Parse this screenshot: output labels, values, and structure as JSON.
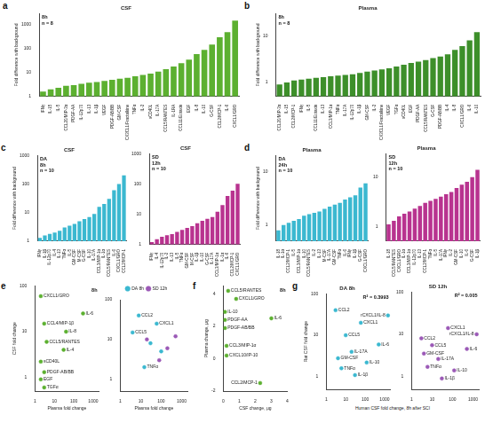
{
  "chart_data": [
    {
      "panel": "a",
      "type": "bar",
      "title": "CSF",
      "annotations": [
        "8h",
        "n = 8"
      ],
      "y_label": "Fold difference with background",
      "log": "y",
      "grid": false,
      "color": "#5cb030",
      "categories": [
        "IFNγ",
        "IL-15",
        "IL-5",
        "CCL20/MIP-3α",
        "PDGF-AA",
        "IL-12p70",
        "IL-13",
        "IL-1β",
        "VEGF",
        "PDGF-AB/BB",
        "GM-CSF",
        "CX3CL1/Fractalkine",
        "TNFα",
        "IL-2",
        "sCD40L",
        "IL-17A",
        "CCL5/RANTES",
        "IL-1RA",
        "CCL11/Eotaxin",
        "EGF",
        "IL-8",
        "IL-10",
        "G-CSF",
        "CCL2/MCP-1",
        "IL-6",
        "CXCL1/GRO"
      ],
      "values": [
        1.6,
        2,
        2.3,
        2.8,
        3,
        3.4,
        3.8,
        4,
        4.5,
        5,
        5.5,
        6,
        7,
        8,
        9,
        11,
        14,
        18,
        25,
        35,
        60,
        90,
        150,
        300,
        500,
        1500
      ],
      "ylim": [
        1,
        3000
      ],
      "yticks": [
        1,
        10,
        100,
        1000
      ]
    },
    {
      "panel": "b",
      "type": "bar",
      "title": "Plasma",
      "annotations": [
        "8h",
        "n = 8"
      ],
      "y_label": "Fold difference with background",
      "log": "y",
      "grid": false,
      "color": "#3d8f2a",
      "categories": [
        "CCL20/MIP-3α",
        "IL-15",
        "CCL2/MCP-1",
        "IFNγ",
        "IL-5",
        "CCL11/Eotaxin",
        "IL-13",
        "CCL3/MIP-1α",
        "TNFα",
        "IL-17A",
        "IL-12p70",
        "IL-1β",
        "GM-CSF",
        "IL-2",
        "CX3CL1/Fractalkine",
        "VEGF",
        "TGFα",
        "sCD40L",
        "EGF",
        "PDGF-AA",
        "CCL5/RANTES",
        "G-CSF",
        "PDGF-AB/BB",
        "IL-4",
        "IL-8",
        "CXCL1/GRO",
        "IL-6",
        "IL-10"
      ],
      "values": [
        0.9,
        1,
        1.1,
        1.15,
        1.2,
        1.25,
        1.3,
        1.35,
        1.4,
        1.45,
        1.5,
        1.6,
        1.7,
        1.8,
        1.9,
        2,
        2.2,
        2.4,
        2.6,
        2.8,
        3,
        3.3,
        3.6,
        4,
        5,
        6,
        8,
        12
      ],
      "ylim": [
        0.5,
        30
      ],
      "yticks": [
        1,
        10
      ]
    },
    {
      "panel": "c",
      "type": "bar",
      "title": "CSF",
      "annotations": [
        "DA",
        "8h",
        "n = 10"
      ],
      "y_label": "Fold difference with background",
      "log": "y",
      "grid": false,
      "color": "#3bb8d0",
      "categories": [
        "IFNγ",
        "IL-1β",
        "IL-12p70",
        "IL-4",
        "IL-13",
        "TNFα",
        "IL-5",
        "GM-CSF",
        "M-CSF",
        "G-CSF",
        "IL-10",
        "IL-17A",
        "CCL3/MIP-1α",
        "IL-1α",
        "CCL5/RANTES",
        "IL-6",
        "CXCL1/GRO",
        "CCL2/MCP-1"
      ],
      "values": [
        1.3,
        1.6,
        1.8,
        2,
        2.3,
        3,
        3.5,
        4,
        5,
        6,
        7,
        9,
        16,
        20,
        30,
        60,
        100,
        200
      ],
      "ylim": [
        1,
        1000
      ],
      "yticks": [
        1,
        10,
        100,
        1000
      ]
    },
    {
      "type": "bar",
      "title": "CSF",
      "annotations": [
        "SD",
        "12h",
        "n = 10"
      ],
      "log": "y",
      "grid": false,
      "color": "#b8338f",
      "categories": [
        "IFNγ",
        "IL-4",
        "IL-12p70",
        "IL-2",
        "IL-13",
        "IL-5",
        "TNFα",
        "GM-CSF",
        "M-CSF",
        "IL-1β",
        "IL-10",
        "G-CSF",
        "IL-17A",
        "CCL3/MIP-1α",
        "IL-1α",
        "IL-6",
        "CCL2/MCP-1",
        "CXCL1/GRO"
      ],
      "values": [
        1.2,
        1.5,
        1.8,
        2,
        2.2,
        2.6,
        3,
        3.5,
        4,
        5,
        6,
        7,
        8,
        12,
        20,
        40,
        60,
        100
      ],
      "ylim": [
        1,
        1000
      ],
      "yticks": [
        1,
        10,
        100,
        1000
      ]
    },
    {
      "panel": "d",
      "type": "bar",
      "title": "Plasma",
      "annotations": [
        "DA",
        "24h",
        "n = 10"
      ],
      "y_label": "Fold difference with background",
      "log": "y",
      "grid": false,
      "color": "#3bb8d0",
      "categories": [
        "IL-18",
        "IL-1α",
        "CCL2/MCP-1",
        "IL-5",
        "CCL3/MIP-1α",
        "IL-10",
        "CCL5/RANTES",
        "IL-2",
        "IL-13",
        "M-CSF",
        "IL-17A",
        "GM-CSF",
        "TNFα",
        "IL-6",
        "IFNγ",
        "IL-1β",
        "G-CSF",
        "CXCL1/GRO"
      ],
      "values": [
        0.8,
        1,
        1.1,
        1.2,
        1.3,
        1.5,
        1.6,
        1.7,
        1.8,
        2,
        2.2,
        2.4,
        2.6,
        3,
        3.3,
        3.6,
        5,
        6
      ],
      "ylim": [
        0.5,
        20
      ],
      "yticks": [
        1,
        10
      ]
    },
    {
      "type": "bar",
      "title": "Plasma",
      "annotations": [
        "SD",
        "12h",
        "n = 10"
      ],
      "log": "y",
      "grid": false,
      "color": "#b8338f",
      "categories": [
        "IL-18",
        "CCL5/RANTES",
        "CXCL1/GRO",
        "IL-1α",
        "CCL3/MIP-1α",
        "IL-12p70",
        "IL-13",
        "CCL2/MCP-1",
        "TNFα",
        "IL-5",
        "IL-17A",
        "IFNγ",
        "IL-2",
        "GM-CSF",
        "IL-10",
        "IL-6",
        "G-CSF",
        "IL-1β"
      ],
      "values": [
        1.1,
        1.3,
        1.6,
        1.8,
        2,
        2.3,
        2.6,
        3,
        3.3,
        3.6,
        4,
        4.5,
        5,
        6,
        7,
        8,
        10,
        14
      ],
      "ylim": [
        0.5,
        30
      ],
      "yticks": [
        1,
        10
      ]
    },
    {
      "panel": "e",
      "type": "scatter",
      "annotations": [
        "8h"
      ],
      "x_label": "Plasma fold change",
      "y_label": "CSF fold change",
      "log": true,
      "grid": false,
      "series": [
        {
          "name": "8h",
          "color": "#5cb030",
          "marker": "circle",
          "values": [
            {
              "x": 2,
              "y": 60,
              "label": "CXCL1/GRO"
            },
            {
              "x": 300,
              "y": 25,
              "label": "IL-6"
            },
            {
              "x": 3,
              "y": 15,
              "label": "CCL4/MIP-1β"
            },
            {
              "x": 40,
              "y": 10,
              "label": "IL-8"
            },
            {
              "x": 4,
              "y": 6,
              "label": "CCL5/RANTES"
            },
            {
              "x": 30,
              "y": 4,
              "label": "IL-4"
            },
            {
              "x": 2,
              "y": 2.2,
              "label": "sCD40L"
            },
            {
              "x": 3,
              "y": 1.3,
              "label": "PDGF-AB/BB"
            },
            {
              "x": 2,
              "y": 0.9,
              "label": "EGF"
            },
            {
              "x": 3,
              "y": 0.6,
              "label": "TGFα"
            }
          ]
        }
      ],
      "xlim": [
        1,
        2000
      ],
      "xticks": [
        1,
        10,
        100,
        1000
      ],
      "ylim": [
        0.5,
        100
      ],
      "yticks": [
        1,
        10,
        100
      ]
    },
    {
      "type": "scatter",
      "x_label": "Plasma fold change",
      "log": true,
      "grid": false,
      "legend": "top",
      "series": [
        {
          "name": "DA 8h",
          "color": "#3bb8d0",
          "marker": "circle",
          "values": [
            {
              "x": 8,
              "y": 40,
              "label": "CCL2"
            },
            {
              "x": 4,
              "y": 15,
              "label": "CCL5"
            },
            {
              "x": 60,
              "y": 25,
              "label": "CXCL1"
            },
            {
              "x": 15,
              "y": 2,
              "label": "TNFα"
            },
            {
              "x": 100,
              "y": 5
            },
            {
              "x": 30,
              "y": 8
            }
          ]
        },
        {
          "name": "SD 12h",
          "color": "#9b59b6",
          "marker": "circle",
          "values": [
            {
              "x": 20,
              "y": 10
            },
            {
              "x": 200,
              "y": 6
            },
            {
              "x": 500,
              "y": 12
            },
            {
              "x": 80,
              "y": 3
            }
          ]
        }
      ],
      "xlim": [
        1,
        2000
      ],
      "xticks": [
        1,
        10,
        100,
        1000
      ],
      "ylim": [
        0.5,
        100
      ],
      "yticks": [
        1,
        10,
        100
      ]
    },
    {
      "panel": "f",
      "type": "scatter",
      "annotations": [
        "8h"
      ],
      "x_label": "CSF change, µg",
      "y_label": "Plasma change, µg",
      "grid": false,
      "series": [
        {
          "name": "8h",
          "color": "#5cb030",
          "marker": "circle",
          "values": [
            {
              "x": 0.3,
              "y": 4.2,
              "label": "CCL5/RANTES"
            },
            {
              "x": 0.8,
              "y": 3.7,
              "label": "CXCL1/GRO"
            },
            {
              "x": 0.1,
              "y": 2.9,
              "label": "IL-10"
            },
            {
              "x": 0.1,
              "y": 2.4,
              "label": "PDGF-AA"
            },
            {
              "x": 0.1,
              "y": 1.9,
              "label": "PDGF-AB/BB"
            },
            {
              "x": 3,
              "y": 2.5,
              "label": "IL-6"
            },
            {
              "x": 0.2,
              "y": 0.8,
              "label": "CCL3/MIP-1α"
            },
            {
              "x": 0.2,
              "y": 0.2,
              "label": "CXCL10/IP-10"
            },
            {
              "x": 2.3,
              "y": -1.5,
              "label": "CCL2/MCP-1"
            }
          ]
        }
      ],
      "xlim": [
        0,
        4
      ],
      "xticks": [
        0,
        1,
        2,
        3,
        4
      ],
      "ylim": [
        -2,
        4.5
      ],
      "yticks": [
        -2,
        0,
        2,
        4
      ]
    },
    {
      "panel": "g",
      "type": "scatter",
      "title": "DA 8h",
      "annotations": [
        "R² = 0.3993"
      ],
      "x_label": "Human CSF fold change, 8h after SCI",
      "y_label": "Rat CSF fold change",
      "log": true,
      "grid": false,
      "series": [
        {
          "name": "DA 8h",
          "color": "#3bb8d0",
          "marker": "circle",
          "values": [
            {
              "x": 3,
              "y": 40,
              "label": "CCL2"
            },
            {
              "x": 60,
              "y": 20,
              "label": "CXCL1"
            },
            {
              "x": 10,
              "y": 10,
              "label": "CCL5"
            },
            {
              "x": 1500,
              "y": 30,
              "label": "rCXCL1/IL-8"
            },
            {
              "x": 20,
              "y": 4,
              "label": "IL-17A"
            },
            {
              "x": 4,
              "y": 2.8,
              "label": "GM-CSF"
            },
            {
              "x": 6,
              "y": 1.6,
              "label": "TNFα"
            },
            {
              "x": 30,
              "y": 1.1,
              "label": "IL-1β"
            },
            {
              "x": 120,
              "y": 2.2,
              "label": "IL-10"
            },
            {
              "x": 500,
              "y": 6,
              "label": "IL-6"
            }
          ]
        }
      ],
      "xlim": [
        1,
        2000
      ],
      "xticks": [
        1,
        10,
        100,
        1000
      ],
      "ylim": [
        0.5,
        100
      ],
      "yticks": [
        1,
        10,
        100
      ]
    },
    {
      "type": "scatter",
      "title": "SD 12h",
      "annotations": [
        "R² = 0.005"
      ],
      "log": true,
      "grid": false,
      "series": [
        {
          "name": "SD 12h",
          "color": "#9b59b6",
          "marker": "circle",
          "values": [
            {
              "x": 3,
              "y": 8,
              "label": "CCL2"
            },
            {
              "x": 60,
              "y": 14,
              "label": "CXCL1"
            },
            {
              "x": 1500,
              "y": 10,
              "label": "rCXCL1/IL-8"
            },
            {
              "x": 4,
              "y": 3.5,
              "label": "GM-CSF"
            },
            {
              "x": 20,
              "y": 2.6,
              "label": "IL-17A"
            },
            {
              "x": 6,
              "y": 1.7,
              "label": "TNFα"
            },
            {
              "x": 120,
              "y": 1.4,
              "label": "IL-10"
            },
            {
              "x": 500,
              "y": 4.5,
              "label": "IL-6"
            },
            {
              "x": 30,
              "y": 0.9,
              "label": "IL-1β"
            },
            {
              "x": 10,
              "y": 5.5,
              "label": "CCL5"
            }
          ]
        }
      ],
      "xlim": [
        1,
        2000
      ],
      "xticks": [
        1,
        10,
        100,
        1000
      ],
      "ylim": [
        0.5,
        100
      ],
      "yticks": [
        1,
        10,
        100
      ]
    }
  ]
}
